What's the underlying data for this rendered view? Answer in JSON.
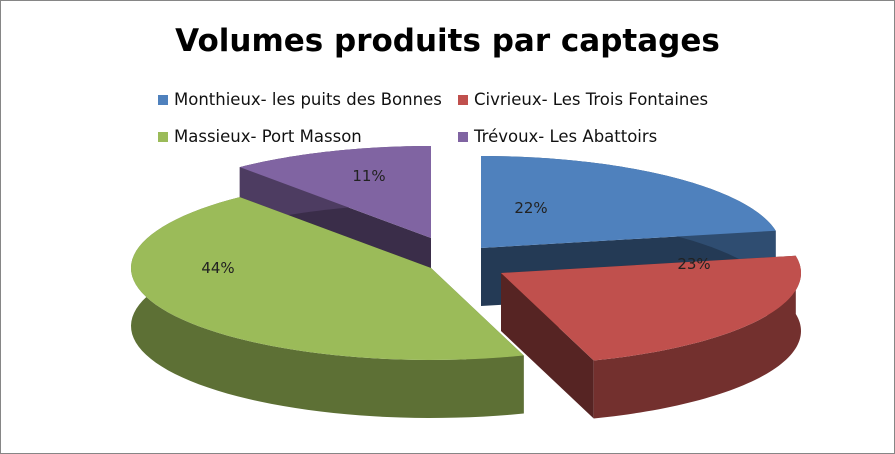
{
  "chart_data": {
    "type": "pie",
    "style": "3d-exploded",
    "title": "Volumes produits par captages",
    "legend_position": "top",
    "series": [
      {
        "name": "Monthieux- les puits des Bonnes",
        "value": 22,
        "label": "22%",
        "color": "#4f81bd"
      },
      {
        "name": "Civrieux- Les Trois Fontaines",
        "value": 23,
        "label": "23%",
        "color": "#c0504d"
      },
      {
        "name": "Massieux- Port Masson",
        "value": 44,
        "label": "44%",
        "color": "#9bbb59"
      },
      {
        "name": "Trévoux- Les Abattoirs",
        "value": 11,
        "label": "11%",
        "color": "#8064a2"
      }
    ]
  }
}
